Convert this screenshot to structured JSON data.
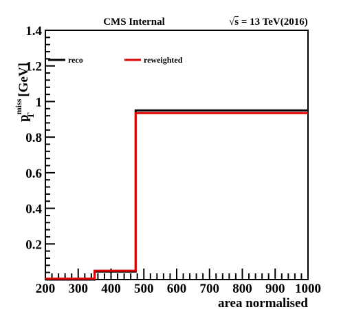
{
  "header": {
    "left": "CMS Internal",
    "right_sqrt": "√",
    "right_s": "s",
    "right_rest": " = 13 TeV(2016)"
  },
  "chart_data": {
    "type": "step",
    "xlabel": "area normalised",
    "ylabel": {
      "main": "p",
      "sub": "T",
      "sup": "miss",
      "unit": " [GeV]"
    },
    "xlim": [
      200,
      1000
    ],
    "ylim": [
      0,
      1.4
    ],
    "x_ticks": [
      "200",
      "300",
      "400",
      "500",
      "600",
      "700",
      "800",
      "900",
      "1000"
    ],
    "y_ticks": [
      "0.2",
      "0.4",
      "0.6",
      "0.8",
      "1",
      "1.2",
      "1.4"
    ],
    "grid": false,
    "legend_position": "top",
    "bin_edges": [
      200,
      350,
      475,
      1000
    ],
    "series": [
      {
        "name": "reco",
        "color": "#000000",
        "values": [
          0.0,
          0.045,
          0.95
        ]
      },
      {
        "name": "reweighted",
        "color": "#e00000",
        "values": [
          0.005,
          0.05,
          0.935
        ]
      }
    ]
  }
}
